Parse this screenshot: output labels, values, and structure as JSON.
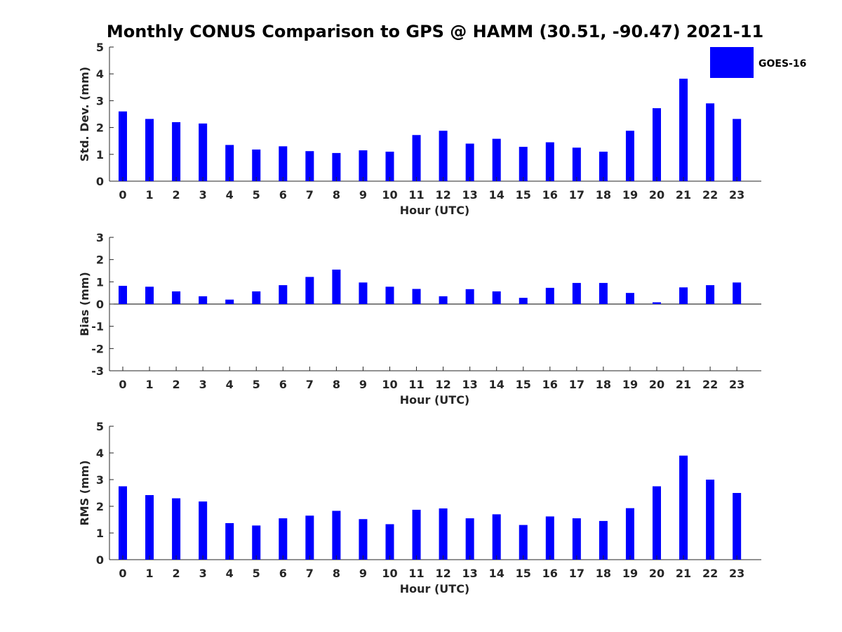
{
  "title": "Monthly CONUS Comparison to GPS @ HAMM (30.51, -90.47) 2021-11",
  "colors": {
    "bar": "#0000ff",
    "axis": "#262626"
  },
  "legend": {
    "label": "GOES-16",
    "position": "top-right"
  },
  "chart_data": [
    {
      "type": "bar",
      "name": "std-dev-panel",
      "xlabel": "Hour (UTC)",
      "ylabel": "Std. Dev. (mm)",
      "ylim": [
        0,
        5
      ],
      "yticks": [
        0,
        1,
        2,
        3,
        4,
        5
      ],
      "categories": [
        "0",
        "1",
        "2",
        "3",
        "4",
        "5",
        "6",
        "7",
        "8",
        "9",
        "10",
        "11",
        "12",
        "13",
        "14",
        "15",
        "16",
        "17",
        "18",
        "19",
        "20",
        "21",
        "22",
        "23"
      ],
      "series": [
        {
          "name": "GOES-16",
          "values": [
            2.6,
            2.32,
            2.2,
            2.15,
            1.35,
            1.18,
            1.3,
            1.12,
            1.05,
            1.15,
            1.1,
            1.72,
            1.88,
            1.4,
            1.58,
            1.28,
            1.45,
            1.25,
            1.1,
            1.88,
            2.72,
            3.82,
            2.9,
            2.32
          ]
        }
      ]
    },
    {
      "type": "bar",
      "name": "bias-panel",
      "xlabel": "Hour (UTC)",
      "ylabel": "Bias (mm)",
      "ylim": [
        -3,
        3
      ],
      "yticks": [
        -3,
        -2,
        -1,
        0,
        1,
        2,
        3
      ],
      "categories": [
        "0",
        "1",
        "2",
        "3",
        "4",
        "5",
        "6",
        "7",
        "8",
        "9",
        "10",
        "11",
        "12",
        "13",
        "14",
        "15",
        "16",
        "17",
        "18",
        "19",
        "20",
        "21",
        "22",
        "23"
      ],
      "series": [
        {
          "name": "GOES-16",
          "values": [
            0.82,
            0.78,
            0.57,
            0.35,
            0.2,
            0.57,
            0.85,
            1.22,
            1.55,
            0.97,
            0.78,
            0.68,
            0.35,
            0.67,
            0.57,
            0.28,
            0.73,
            0.95,
            0.95,
            0.5,
            0.08,
            0.75,
            0.85,
            0.97
          ]
        }
      ]
    },
    {
      "type": "bar",
      "name": "rms-panel",
      "xlabel": "Hour (UTC)",
      "ylabel": "RMS (mm)",
      "ylim": [
        0,
        5
      ],
      "yticks": [
        0,
        1,
        2,
        3,
        4,
        5
      ],
      "categories": [
        "0",
        "1",
        "2",
        "3",
        "4",
        "5",
        "6",
        "7",
        "8",
        "9",
        "10",
        "11",
        "12",
        "13",
        "14",
        "15",
        "16",
        "17",
        "18",
        "19",
        "20",
        "21",
        "22",
        "23"
      ],
      "series": [
        {
          "name": "GOES-16",
          "values": [
            2.75,
            2.42,
            2.3,
            2.18,
            1.37,
            1.28,
            1.55,
            1.65,
            1.83,
            1.52,
            1.33,
            1.87,
            1.92,
            1.55,
            1.7,
            1.3,
            1.62,
            1.55,
            1.45,
            1.93,
            2.75,
            3.9,
            3.0,
            2.5
          ]
        }
      ]
    }
  ]
}
